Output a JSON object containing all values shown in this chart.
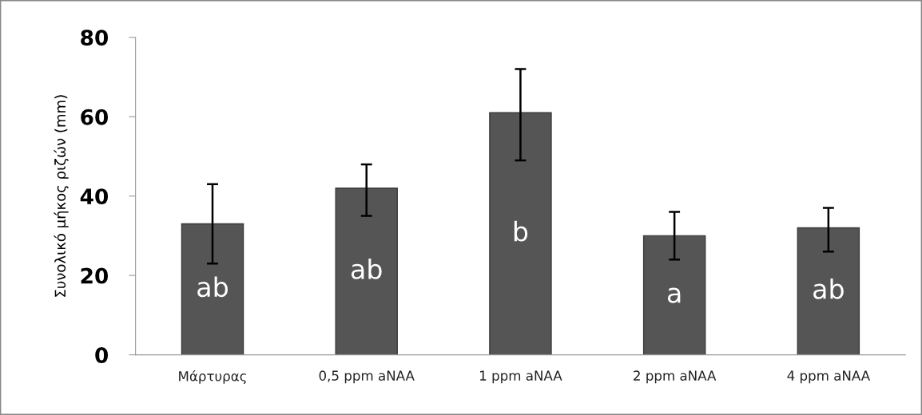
{
  "chart_data": {
    "type": "bar",
    "ylabel": "Συνολικό μήκος ριζών (mm)",
    "categories": [
      "Μάρτυρας",
      "0,5 ppm aNAA",
      "1 ppm aNAA",
      "2 ppm aNAA",
      "4 ppm aNAA"
    ],
    "values": [
      33,
      42,
      61,
      30,
      32
    ],
    "errors": [
      [
        23,
        43
      ],
      [
        35,
        48
      ],
      [
        49,
        72
      ],
      [
        24,
        36
      ],
      [
        26,
        37
      ]
    ],
    "color": "#555555",
    "value_labels": [
      "ab",
      "ab",
      "b",
      "a",
      "ab"
    ],
    "ylim": [
      0,
      80
    ],
    "yticks": [
      0,
      20,
      40,
      60,
      80
    ],
    "grid": false,
    "legend": false
  }
}
